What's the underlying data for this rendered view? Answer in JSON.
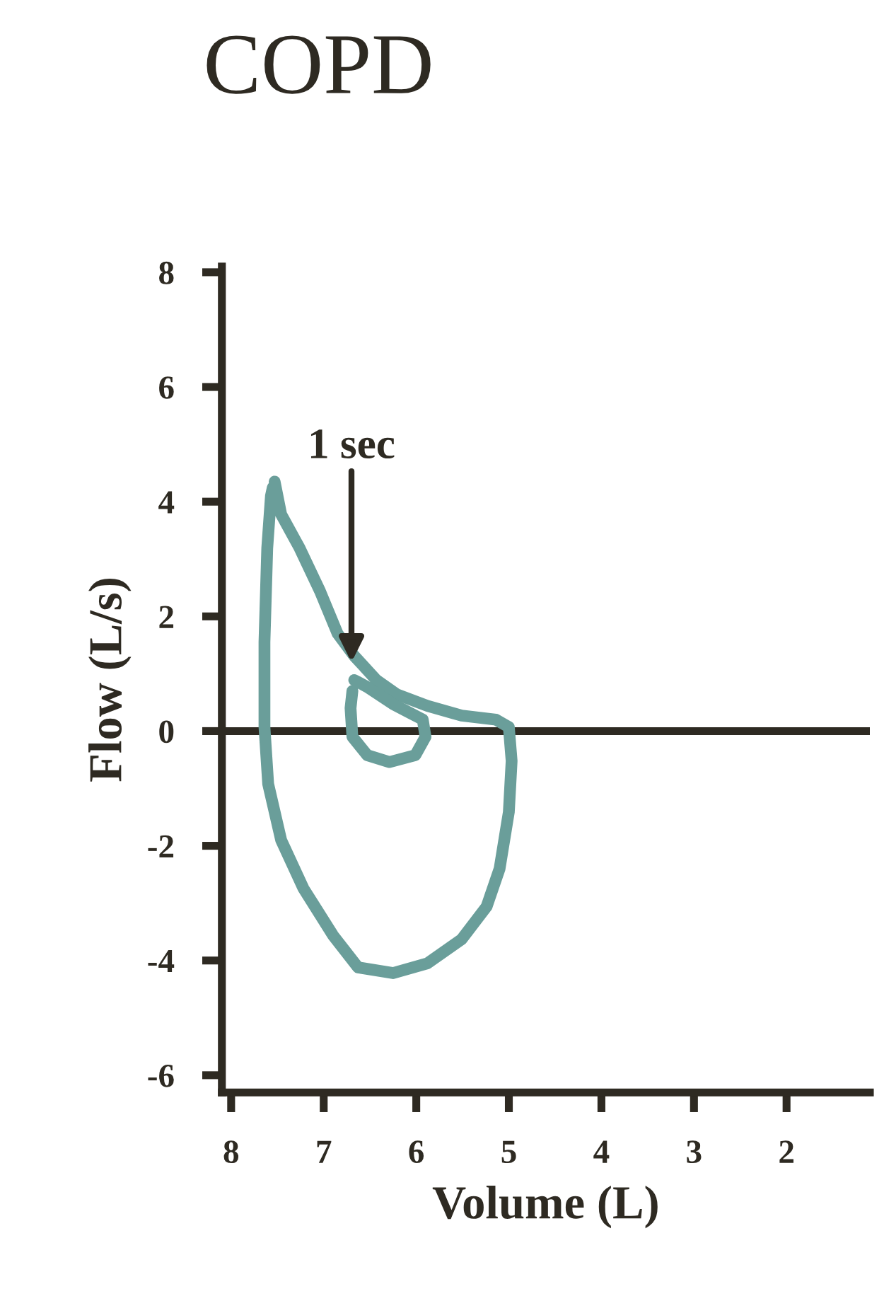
{
  "chart_data": {
    "type": "line",
    "title": "COPD",
    "xlabel": "Volume (L)",
    "ylabel": "Flow (L/s)",
    "series": [
      {
        "color": "#6a9e9a",
        "x": [
          7.53,
          7.46,
          7.26,
          7.04,
          6.85,
          6.67,
          6.43,
          6.21,
          5.88,
          5.51,
          5.14,
          5.0,
          4.97,
          5.0,
          5.1,
          5.24,
          5.51,
          5.88,
          6.25,
          6.63,
          6.9,
          7.22,
          7.46,
          7.6,
          7.64,
          7.64,
          7.61,
          7.57,
          7.55
        ],
        "values": [
          4.35,
          3.78,
          3.19,
          2.44,
          1.7,
          1.31,
          0.89,
          0.64,
          0.44,
          0.27,
          0.2,
          0.07,
          -0.52,
          -1.41,
          -2.4,
          -3.06,
          -3.63,
          -4.05,
          -4.22,
          -4.12,
          -3.56,
          -2.74,
          -1.9,
          -0.92,
          0.07,
          1.55,
          3.19,
          4.1,
          4.25
        ]
      },
      {
        "color": "#6a9e9a",
        "x": [
          6.67,
          6.53,
          6.25,
          5.93,
          5.9,
          6.01,
          6.29,
          6.53,
          6.69,
          6.71,
          6.69
        ],
        "values": [
          0.89,
          0.77,
          0.47,
          0.2,
          -0.1,
          -0.42,
          -0.54,
          -0.42,
          -0.1,
          0.4,
          0.7
        ]
      }
    ],
    "annotations": [
      {
        "text": "1 sec",
        "x": 6.7,
        "y": 1.2
      }
    ],
    "ref_lines": [
      {
        "axis": "y",
        "value": 0,
        "color": "#2e2a22"
      }
    ],
    "xlim": [
      8.1,
      1.1
    ],
    "ylim": [
      -6.3,
      8.1
    ],
    "xticks": [
      8,
      7,
      6,
      5,
      4,
      3,
      2
    ],
    "yticks": [
      -6,
      -4,
      -2,
      0,
      2,
      4,
      6,
      8
    ],
    "grid": false,
    "legend": false,
    "marker": "none",
    "line_style": "solid"
  }
}
